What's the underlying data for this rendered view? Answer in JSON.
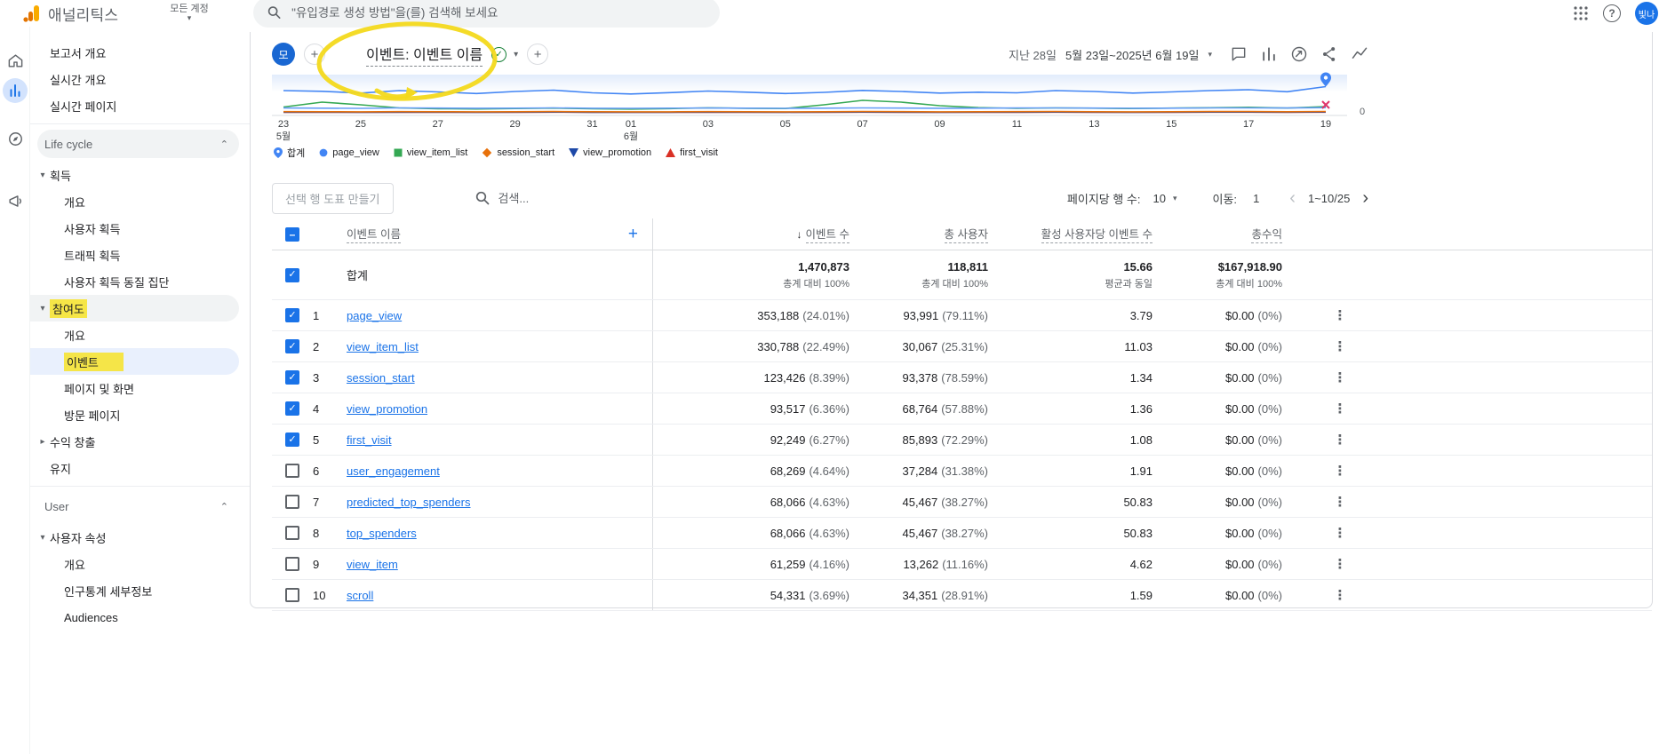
{
  "topbar": {
    "app_name": "애널리틱스",
    "account_switcher": "모든 계정",
    "search_placeholder": "\"유입경로 생성 방법\"을(를) 검색해 보세요",
    "avatar_label": "빛나"
  },
  "icons": {
    "check": "✓",
    "indeterminate": "–",
    "plus": "+",
    "caret_down": "▾",
    "caret_right": "▸",
    "chevron_up": "⌃",
    "chevron_left": "‹",
    "chevron_right": "›",
    "sort_desc": "↓",
    "kebab": "⋮",
    "help": "?"
  },
  "sidebar": {
    "items": [
      {
        "type": "link",
        "label": "보고서 개요"
      },
      {
        "type": "link",
        "label": "실시간 개요"
      },
      {
        "type": "link",
        "label": "실시간 페이지"
      },
      {
        "type": "section",
        "label": "Life cycle",
        "pill": true
      },
      {
        "type": "group",
        "label": "획득",
        "state": "expanded"
      },
      {
        "type": "child",
        "label": "개요"
      },
      {
        "type": "child",
        "label": "사용자 획득"
      },
      {
        "type": "child",
        "label": "트래픽 획득"
      },
      {
        "type": "child",
        "label": "사용자 획득 동질 집단"
      },
      {
        "type": "group",
        "label": "참여도",
        "state": "expanded",
        "active": true,
        "highlight": true
      },
      {
        "type": "child",
        "label": "개요"
      },
      {
        "type": "child",
        "label": "이벤트",
        "selected": true,
        "highlight": true
      },
      {
        "type": "child",
        "label": "페이지 및 화면"
      },
      {
        "type": "child",
        "label": "방문 페이지"
      },
      {
        "type": "group",
        "label": "수익 창출",
        "state": "collapsed"
      },
      {
        "type": "link",
        "label": "유지"
      },
      {
        "type": "section",
        "label": "User"
      },
      {
        "type": "group",
        "label": "사용자 속성",
        "state": "expanded"
      },
      {
        "type": "child",
        "label": "개요"
      },
      {
        "type": "child",
        "label": "인구통계 세부정보"
      },
      {
        "type": "child",
        "label": "Audiences"
      }
    ]
  },
  "report": {
    "property_badge": "모",
    "title": "이벤트: 이벤트 이름",
    "date_range_label": "지난 28일",
    "date_range_value": "5월 23일~2025년 6월 19일"
  },
  "chart_data": {
    "type": "line",
    "x_start": "5월 23일",
    "x_end": "6월 19일",
    "right_axis_label": "0",
    "ticks": [
      {
        "i": 0,
        "l1": "23",
        "l2": "5월"
      },
      {
        "i": 2,
        "l1": "25"
      },
      {
        "i": 4,
        "l1": "27"
      },
      {
        "i": 6,
        "l1": "29"
      },
      {
        "i": 8,
        "l1": "31"
      },
      {
        "i": 9,
        "l1": "01",
        "l2": "6월"
      },
      {
        "i": 11,
        "l1": "03"
      },
      {
        "i": 13,
        "l1": "05"
      },
      {
        "i": 15,
        "l1": "07"
      },
      {
        "i": 17,
        "l1": "09"
      },
      {
        "i": 19,
        "l1": "11"
      },
      {
        "i": 21,
        "l1": "13"
      },
      {
        "i": 23,
        "l1": "15"
      },
      {
        "i": 25,
        "l1": "17"
      },
      {
        "i": 27,
        "l1": "19"
      }
    ],
    "legend": [
      {
        "label": "합계",
        "shape": "pin",
        "color": "#4285f4"
      },
      {
        "label": "page_view",
        "shape": "circle",
        "color": "#4285f4"
      },
      {
        "label": "view_item_list",
        "shape": "square",
        "color": "#34a853"
      },
      {
        "label": "session_start",
        "shape": "diamond",
        "color": "#e8710a"
      },
      {
        "label": "view_promotion",
        "shape": "triangle-down",
        "color": "#1e49a8"
      },
      {
        "label": "first_visit",
        "shape": "triangle-up",
        "color": "#d93025"
      }
    ],
    "series": [
      {
        "name": "합계",
        "color": "#4285f4",
        "values": [
          52000,
          50500,
          46500,
          52000,
          49000,
          45500,
          50000,
          53000,
          47000,
          44500,
          47500,
          51000,
          48500,
          45500,
          48000,
          52500,
          50000,
          46500,
          48500,
          47000,
          52000,
          50000,
          46500,
          49000,
          52000,
          54000,
          49500,
          61000
        ]
      },
      {
        "name": "page_view",
        "color": "#669df6",
        "values": [
          12800,
          12500,
          12100,
          12900,
          12600,
          12200,
          12500,
          13000,
          12300,
          12000,
          12400,
          12800,
          12500,
          12100,
          12400,
          12900,
          12600,
          12200,
          12500,
          12700,
          13000,
          12600,
          12300,
          12500,
          12900,
          13100,
          12700,
          13600
        ]
      },
      {
        "name": "view_item_list",
        "color": "#34a853",
        "values": [
          15000,
          26000,
          20000,
          13000,
          11200,
          10600,
          11600,
          12600,
          11000,
          10400,
          11400,
          13200,
          12200,
          11600,
          20000,
          30000,
          26000,
          18000,
          13600,
          12000,
          13000,
          12400,
          11600,
          12600,
          13400,
          14400,
          12600,
          16000
        ]
      },
      {
        "name": "session_start",
        "color": "#e8710a",
        "values": [
          4600,
          4500,
          4300,
          4600,
          4400,
          4200,
          4500,
          4700,
          4400,
          4200,
          4300,
          4600,
          4500,
          4300,
          4400,
          4700,
          4600,
          4300,
          4500,
          4600,
          4800,
          4500,
          4300,
          4500,
          4700,
          4800,
          4500,
          5000
        ]
      },
      {
        "name": "view_promotion",
        "color": "#1e49a8",
        "values": [
          3500,
          3400,
          3300,
          3500,
          3400,
          3200,
          3400,
          3600,
          3300,
          3200,
          3300,
          3500,
          3400,
          3300,
          3400,
          3600,
          3500,
          3300,
          3400,
          3500,
          3600,
          3400,
          3300,
          3400,
          3600,
          3600,
          3400,
          3700
        ]
      },
      {
        "name": "first_visit",
        "color": "#d93025",
        "values": [
          3300,
          3250,
          3100,
          3300,
          3200,
          3050,
          3200,
          3400,
          3150,
          3050,
          3150,
          3300,
          3250,
          3100,
          3200,
          3400,
          3300,
          3150,
          3250,
          3300,
          3400,
          3250,
          3100,
          3250,
          3400,
          3400,
          3250,
          3500
        ]
      }
    ]
  },
  "controls": {
    "plot_button": "선택 행 도표 만들기",
    "search_placeholder": "검색...",
    "rows_per_page_label": "페이지당 행 수:",
    "rows_per_page_value": "10",
    "goto_label": "이동:",
    "goto_value": "1",
    "pagination_range": "1~10/25"
  },
  "table": {
    "columns": {
      "name": "이벤트 이름",
      "events": "이벤트 수",
      "users": "총 사용자",
      "events_per_user": "활성 사용자당 이벤트 수",
      "revenue": "총수익"
    },
    "totals": {
      "label": "합계",
      "events": "1,470,873",
      "events_sub": "총계 대비 100%",
      "users": "118,811",
      "users_sub": "총계 대비 100%",
      "events_per_user": "15.66",
      "events_per_user_sub": "평균과 동일",
      "revenue": "$167,918.90",
      "revenue_sub": "총계 대비 100%"
    },
    "rows": [
      {
        "index": "1",
        "name": "page_view",
        "checked": true,
        "events": "353,188",
        "events_pct": "(24.01%)",
        "users": "93,991",
        "users_pct": "(79.11%)",
        "events_per_user": "3.79",
        "revenue": "$0.00",
        "revenue_pct": "(0%)"
      },
      {
        "index": "2",
        "name": "view_item_list",
        "checked": true,
        "events": "330,788",
        "events_pct": "(22.49%)",
        "users": "30,067",
        "users_pct": "(25.31%)",
        "events_per_user": "11.03",
        "revenue": "$0.00",
        "revenue_pct": "(0%)"
      },
      {
        "index": "3",
        "name": "session_start",
        "checked": true,
        "events": "123,426",
        "events_pct": "(8.39%)",
        "users": "93,378",
        "users_pct": "(78.59%)",
        "events_per_user": "1.34",
        "revenue": "$0.00",
        "revenue_pct": "(0%)"
      },
      {
        "index": "4",
        "name": "view_promotion",
        "checked": true,
        "events": "93,517",
        "events_pct": "(6.36%)",
        "users": "68,764",
        "users_pct": "(57.88%)",
        "events_per_user": "1.36",
        "revenue": "$0.00",
        "revenue_pct": "(0%)"
      },
      {
        "index": "5",
        "name": "first_visit",
        "checked": true,
        "events": "92,249",
        "events_pct": "(6.27%)",
        "users": "85,893",
        "users_pct": "(72.29%)",
        "events_per_user": "1.08",
        "revenue": "$0.00",
        "revenue_pct": "(0%)"
      },
      {
        "index": "6",
        "name": "user_engagement",
        "checked": false,
        "events": "68,269",
        "events_pct": "(4.64%)",
        "users": "37,284",
        "users_pct": "(31.38%)",
        "events_per_user": "1.91",
        "revenue": "$0.00",
        "revenue_pct": "(0%)"
      },
      {
        "index": "7",
        "name": "predicted_top_spenders",
        "checked": false,
        "events": "68,066",
        "events_pct": "(4.63%)",
        "users": "45,467",
        "users_pct": "(38.27%)",
        "events_per_user": "50.83",
        "revenue": "$0.00",
        "revenue_pct": "(0%)"
      },
      {
        "index": "8",
        "name": "top_spenders",
        "checked": false,
        "events": "68,066",
        "events_pct": "(4.63%)",
        "users": "45,467",
        "users_pct": "(38.27%)",
        "events_per_user": "50.83",
        "revenue": "$0.00",
        "revenue_pct": "(0%)"
      },
      {
        "index": "9",
        "name": "view_item",
        "checked": false,
        "events": "61,259",
        "events_pct": "(4.16%)",
        "users": "13,262",
        "users_pct": "(11.16%)",
        "events_per_user": "4.62",
        "revenue": "$0.00",
        "revenue_pct": "(0%)"
      },
      {
        "index": "10",
        "name": "scroll",
        "checked": false,
        "events": "54,331",
        "events_pct": "(3.69%)",
        "users": "34,351",
        "users_pct": "(28.91%)",
        "events_per_user": "1.59",
        "revenue": "$0.00",
        "revenue_pct": "(0%)"
      }
    ]
  },
  "annotations": {
    "highlight_color": "#f3d91c"
  }
}
